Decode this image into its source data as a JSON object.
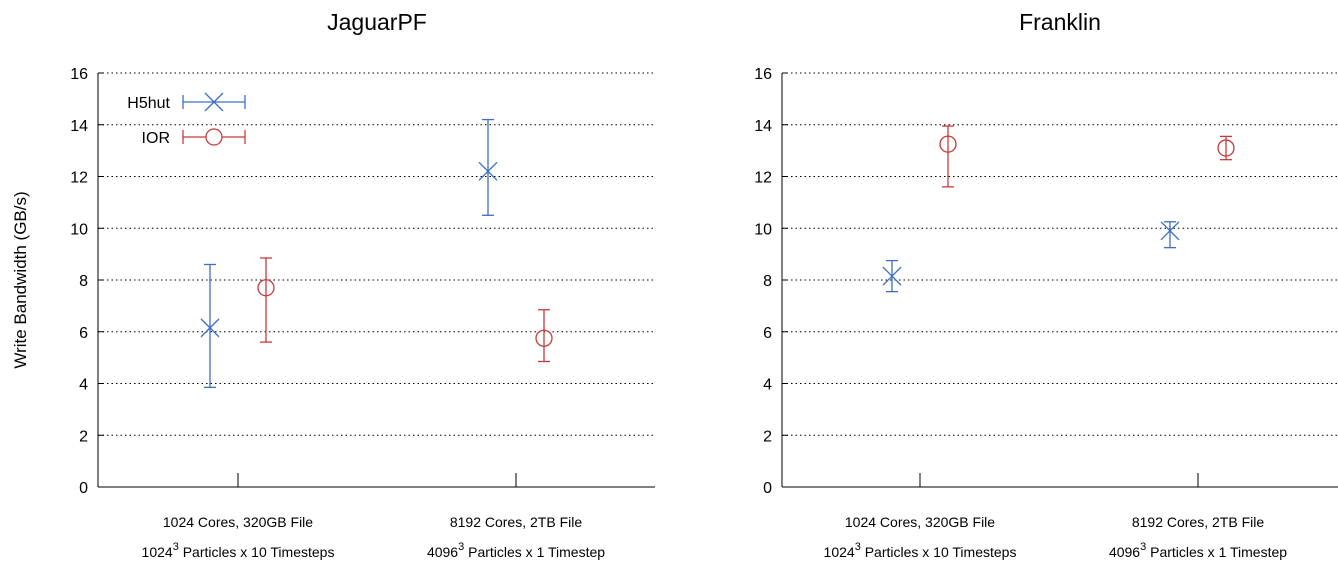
{
  "chart_data": [
    {
      "type": "scatter",
      "title": "JaguarPF",
      "xlabel": "",
      "ylabel": "Write Bandwidth (GB/s)",
      "ylim": [
        0,
        16
      ],
      "yticks": [
        "0",
        "2",
        "4",
        "6",
        "8",
        "10",
        "12",
        "14",
        "16"
      ],
      "grid": true,
      "legend": "top-left",
      "categories": [
        {
          "line1": "1024 Cores, 320GB File",
          "line2_base": "1024",
          "line2_sup": "3",
          "line2_rest": " Particles x 10 Timesteps"
        },
        {
          "line1": "8192 Cores, 2TB File",
          "line2_base": "4096",
          "line2_sup": "3",
          "line2_rest": " Particles x 1 Timestep"
        }
      ],
      "series": [
        {
          "name": "H5hut",
          "color": "#3d6fc0",
          "marker": "x",
          "values": [
            6.15,
            12.2
          ],
          "err_low": [
            3.85,
            10.5
          ],
          "err_high": [
            8.6,
            14.2
          ]
        },
        {
          "name": "IOR",
          "color": "#c83a3a",
          "marker": "circle",
          "values": [
            7.7,
            5.75
          ],
          "err_low": [
            5.6,
            4.85
          ],
          "err_high": [
            8.85,
            6.85
          ]
        }
      ]
    },
    {
      "type": "scatter",
      "title": "Franklin",
      "xlabel": "",
      "ylabel": "",
      "ylim": [
        0,
        16
      ],
      "yticks": [
        "0",
        "2",
        "4",
        "6",
        "8",
        "10",
        "12",
        "14",
        "16"
      ],
      "grid": true,
      "legend": "none",
      "categories": [
        {
          "line1": "1024 Cores, 320GB File",
          "line2_base": "1024",
          "line2_sup": "3",
          "line2_rest": " Particles x 10 Timesteps"
        },
        {
          "line1": "8192 Cores, 2TB File",
          "line2_base": "4096",
          "line2_sup": "3",
          "line2_rest": " Particles x 1 Timestep"
        }
      ],
      "series": [
        {
          "name": "H5hut",
          "color": "#3d6fc0",
          "marker": "x",
          "values": [
            8.15,
            9.9
          ],
          "err_low": [
            7.55,
            9.25
          ],
          "err_high": [
            8.75,
            10.25
          ]
        },
        {
          "name": "IOR",
          "color": "#c83a3a",
          "marker": "circle",
          "values": [
            13.25,
            13.1
          ],
          "err_low": [
            11.6,
            12.65
          ],
          "err_high": [
            13.95,
            13.55
          ]
        }
      ]
    }
  ]
}
